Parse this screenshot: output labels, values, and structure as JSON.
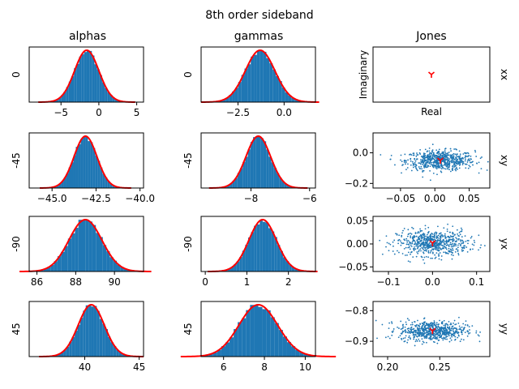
{
  "title": "8th order sideband",
  "column_titles": [
    "alphas",
    "gammas",
    "Jones"
  ],
  "row_labels": [
    "0",
    "-45",
    "-90",
    "45"
  ],
  "jones_row_labels": [
    "xx",
    "xy",
    "yx",
    "yy"
  ],
  "jones_axis_labels": {
    "x": "Real",
    "y": "Imaginary"
  },
  "colors": {
    "histogram": "#1f77b4",
    "fit": "#ff0000",
    "scatter": "#1f77b4",
    "marker": "#ff0000"
  },
  "chart_data": [
    {
      "type": "histogram",
      "panel": "alphas-0",
      "column": "alphas",
      "row_label": "0",
      "mean": -1.6,
      "std": 1.6,
      "xlim": [
        -9.2,
        5.9
      ],
      "xticks": [
        -5,
        0,
        5
      ],
      "xticklabels": [
        "−5",
        "0",
        "5"
      ],
      "fit": "gaussian"
    },
    {
      "type": "histogram",
      "panel": "gammas-0",
      "column": "gammas",
      "row_label": "0",
      "mean": -1.3,
      "std": 0.8,
      "xlim": [
        -4.5,
        1.7
      ],
      "xticks": [
        -2.5,
        0.0
      ],
      "xticklabels": [
        "−2.5",
        "0.0"
      ],
      "fit": "gaussian"
    },
    {
      "type": "scatter",
      "panel": "jones-xx",
      "column": "Jones",
      "row_label": "xx",
      "mean_real": 0.0,
      "mean_imag": 0.0,
      "spread_real": 0.0,
      "spread_imag": 0.0,
      "xlim": [
        -1,
        1
      ],
      "ylim": [
        -1,
        1
      ],
      "xticks": [],
      "yticks": [],
      "xlabel": "Real",
      "ylabel": "Imaginary"
    },
    {
      "type": "histogram",
      "panel": "alphas--45",
      "column": "alphas",
      "row_label": "-45",
      "mean": -43.1,
      "std": 0.65,
      "xlim": [
        -46.3,
        -39.8
      ],
      "xticks": [
        -45.0,
        -42.5,
        -40.0
      ],
      "xticklabels": [
        "−45.0",
        "−42.5",
        "−40.0"
      ],
      "fit": "gaussian"
    },
    {
      "type": "histogram",
      "panel": "gammas--45",
      "column": "gammas",
      "row_label": "-45",
      "mean": -7.75,
      "std": 0.42,
      "xlim": [
        -9.7,
        -5.8
      ],
      "xticks": [
        -8,
        -6
      ],
      "xticklabels": [
        "−8",
        "−6"
      ],
      "fit": "gaussian"
    },
    {
      "type": "scatter",
      "panel": "jones-xy",
      "column": "Jones",
      "row_label": "xy",
      "mean_real": 0.008,
      "mean_imag": -0.05,
      "spread_real": 0.025,
      "spread_imag": 0.032,
      "xlim": [
        -0.09,
        0.08
      ],
      "ylim": [
        -0.23,
        0.13
      ],
      "xticks": [
        -0.05,
        0.0,
        0.05
      ],
      "xticklabels": [
        "−0.05",
        "0.00",
        "0.05"
      ],
      "yticks": [
        -0.2,
        0.0
      ],
      "yticklabels": [
        "−0.2",
        "0.0"
      ]
    },
    {
      "type": "histogram",
      "panel": "alphas--90",
      "column": "alphas",
      "row_label": "-90",
      "mean": 88.5,
      "std": 0.85,
      "xlim": [
        85.6,
        91.5
      ],
      "xticks": [
        86,
        88,
        90
      ],
      "xticklabels": [
        "86",
        "88",
        "90"
      ],
      "fit": "gaussian"
    },
    {
      "type": "histogram",
      "panel": "gammas--90",
      "column": "gammas",
      "row_label": "-90",
      "mean": 1.38,
      "std": 0.33,
      "xlim": [
        -0.1,
        2.65
      ],
      "xticks": [
        0,
        1,
        2
      ],
      "xticklabels": [
        "0",
        "1",
        "2"
      ],
      "fit": "gaussian"
    },
    {
      "type": "scatter",
      "panel": "jones-yx",
      "column": "Jones",
      "row_label": "yx",
      "mean_real": 0.0,
      "mean_imag": 0.002,
      "spread_real": 0.04,
      "spread_imag": 0.014,
      "xlim": [
        -0.135,
        0.13
      ],
      "ylim": [
        -0.06,
        0.06
      ],
      "xticks": [
        -0.1,
        0.0,
        0.1
      ],
      "xticklabels": [
        "−0.1",
        "0.0",
        "0.1"
      ],
      "yticks": [
        -0.05,
        0.0,
        0.05
      ],
      "yticklabels": [
        "−0.05",
        "0.00",
        "0.05"
      ]
    },
    {
      "type": "histogram",
      "panel": "alphas-45",
      "column": "alphas",
      "row_label": "45",
      "mean": 40.6,
      "std": 1.2,
      "xlim": [
        34.9,
        45.4
      ],
      "xticks": [
        40,
        45
      ],
      "xticklabels": [
        "40",
        "45"
      ],
      "fit": "gaussian"
    },
    {
      "type": "histogram",
      "panel": "gammas-45",
      "column": "gammas",
      "row_label": "45",
      "mean": 7.7,
      "std": 0.95,
      "xlim": [
        4.9,
        10.5
      ],
      "xticks": [
        6,
        8,
        10
      ],
      "xticklabels": [
        "6",
        "8",
        "10"
      ],
      "fit": "gaussian"
    },
    {
      "type": "scatter",
      "panel": "jones-yy",
      "column": "Jones",
      "row_label": "yy",
      "mean_real": 0.243,
      "mean_imag": -0.866,
      "spread_real": 0.016,
      "spread_imag": 0.016,
      "xlim": [
        0.186,
        0.298
      ],
      "ylim": [
        -0.95,
        -0.77
      ],
      "xticks": [
        0.2,
        0.25
      ],
      "xticklabels": [
        "0.20",
        "0.25"
      ],
      "yticks": [
        -0.9,
        -0.8
      ],
      "yticklabels": [
        "−0.9",
        "−0.8"
      ]
    }
  ]
}
